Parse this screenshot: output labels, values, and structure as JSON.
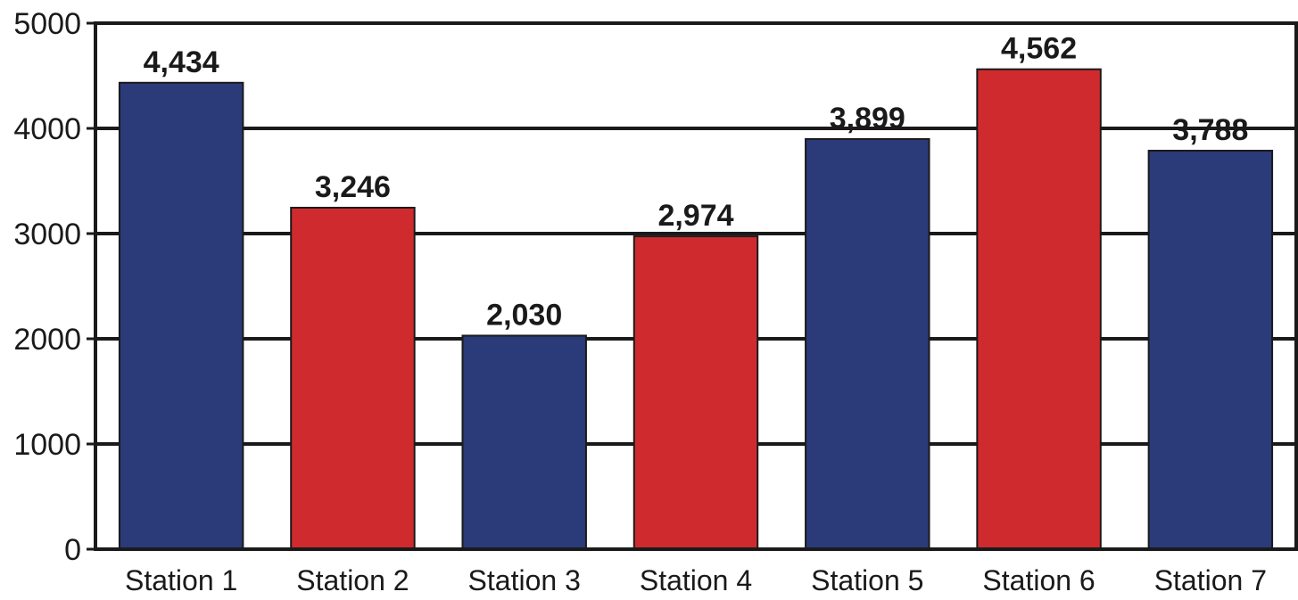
{
  "chart_data": {
    "type": "bar",
    "categories": [
      "Station 1",
      "Station 2",
      "Station 3",
      "Station 4",
      "Station 5",
      "Station 6",
      "Station 7"
    ],
    "values": [
      4434,
      3246,
      2030,
      2974,
      3899,
      4562,
      3788
    ],
    "value_labels": [
      "4,434",
      "3,246",
      "2,030",
      "2,974",
      "3,899",
      "4,562",
      "3,788"
    ],
    "bar_colors": [
      "#2b3a78",
      "#cf2b2e",
      "#2b3a78",
      "#cf2b2e",
      "#2b3a78",
      "#cf2b2e",
      "#2b3a78"
    ],
    "ylim": [
      0,
      5000
    ],
    "yticks": [
      0,
      1000,
      2000,
      3000,
      4000,
      5000
    ],
    "ytick_labels": [
      "0",
      "1000",
      "2000",
      "3000",
      "4000",
      "5000"
    ],
    "grid": true,
    "title": "",
    "xlabel": "",
    "ylabel": ""
  }
}
